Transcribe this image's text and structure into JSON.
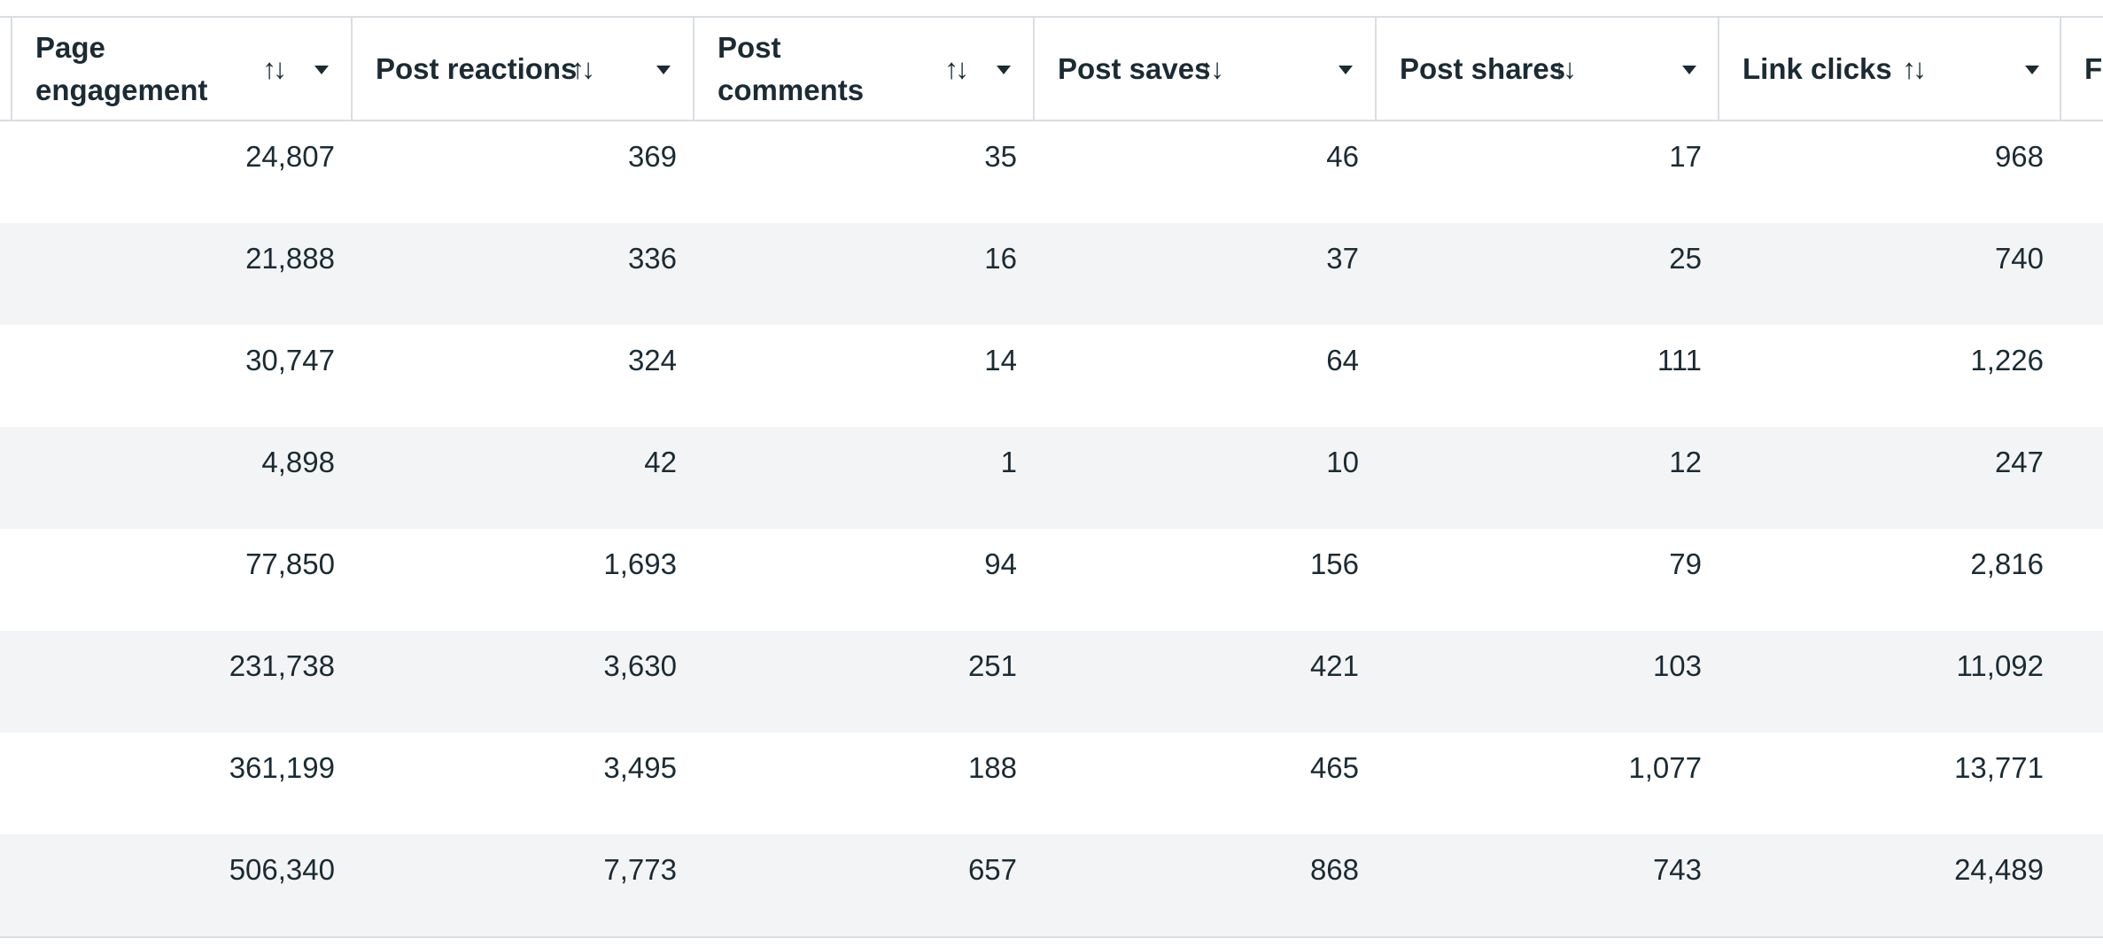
{
  "table": {
    "columns": [
      {
        "label": "Page engagement",
        "lines": [
          "Page",
          "engagement"
        ]
      },
      {
        "label": "Post reactions",
        "lines": [
          "Post reactions"
        ]
      },
      {
        "label": "Post comments",
        "lines": [
          "Post",
          "comments"
        ]
      },
      {
        "label": "Post saves",
        "lines": [
          "Post saves"
        ]
      },
      {
        "label": "Post shares",
        "lines": [
          "Post shares"
        ]
      },
      {
        "label": "Link clicks",
        "lines": [
          "Link clicks"
        ]
      },
      {
        "label": "F",
        "lines": [
          "F"
        ]
      }
    ],
    "sort_glyph": "↑↓",
    "rows": [
      [
        "24,807",
        "369",
        "35",
        "46",
        "17",
        "968"
      ],
      [
        "21,888",
        "336",
        "16",
        "37",
        "25",
        "740"
      ],
      [
        "30,747",
        "324",
        "14",
        "64",
        "111",
        "1,226"
      ],
      [
        "4,898",
        "42",
        "1",
        "10",
        "12",
        "247"
      ],
      [
        "77,850",
        "1,693",
        "94",
        "156",
        "79",
        "2,816"
      ],
      [
        "231,738",
        "3,630",
        "251",
        "421",
        "103",
        "11,092"
      ],
      [
        "361,199",
        "3,495",
        "188",
        "465",
        "1,077",
        "13,771"
      ],
      [
        "506,340",
        "7,773",
        "657",
        "868",
        "743",
        "24,489"
      ]
    ]
  },
  "colors": {
    "text": "#1c2b33",
    "border": "#dadde1",
    "row_alt": "#f3f4f6"
  },
  "icons": [
    "sort-icon",
    "caret-down-icon"
  ]
}
